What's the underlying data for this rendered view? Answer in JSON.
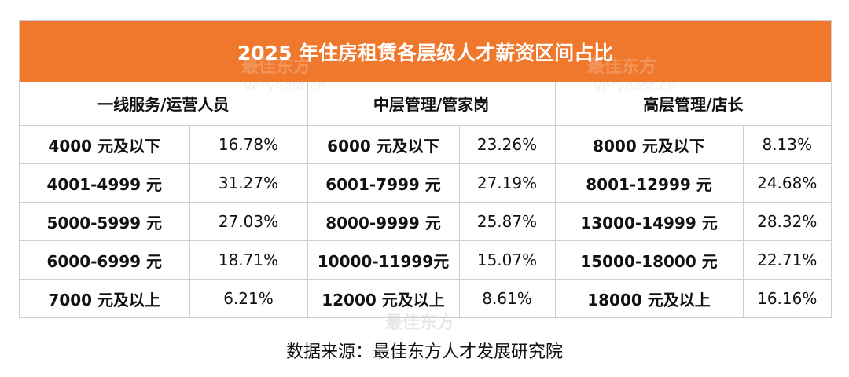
{
  "colors": {
    "accent": "#f0782d",
    "text": "#111111",
    "border": "#cfcfcf"
  },
  "watermark": {
    "text": "最佳东方",
    "sub": "veryeast.cn"
  },
  "chart_data": {
    "type": "table",
    "title": "2025 年住房租赁各层级人才薪资区间占比",
    "groups": [
      {
        "header": "一线服务/运营人员",
        "rows": [
          {
            "range": "4000 元及以下",
            "percent": "16.78%"
          },
          {
            "range": "4001-4999 元",
            "percent": "31.27%"
          },
          {
            "range": "5000-5999 元",
            "percent": "27.03%"
          },
          {
            "range": "6000-6999 元",
            "percent": "18.71%"
          },
          {
            "range": "7000 元及以上",
            "percent": "6.21%"
          }
        ]
      },
      {
        "header": "中层管理/管家岗",
        "rows": [
          {
            "range": "6000 元及以下",
            "percent": "23.26%"
          },
          {
            "range": "6001-7999 元",
            "percent": "27.19%"
          },
          {
            "range": "8000-9999 元",
            "percent": "25.87%"
          },
          {
            "range": "10000-11999元",
            "percent": "15.07%"
          },
          {
            "range": "12000 元及以上",
            "percent": "8.61%"
          }
        ]
      },
      {
        "header": "高层管理/店长",
        "rows": [
          {
            "range": "8000 元及以下",
            "percent": "8.13%"
          },
          {
            "range": "8001-12999 元",
            "percent": "24.68%"
          },
          {
            "range": "13000-14999 元",
            "percent": "28.32%"
          },
          {
            "range": "15000-18000 元",
            "percent": "22.71%"
          },
          {
            "range": "18000 元及以上",
            "percent": "16.16%"
          }
        ]
      }
    ],
    "source": "数据来源：最佳东方人才发展研究院"
  }
}
